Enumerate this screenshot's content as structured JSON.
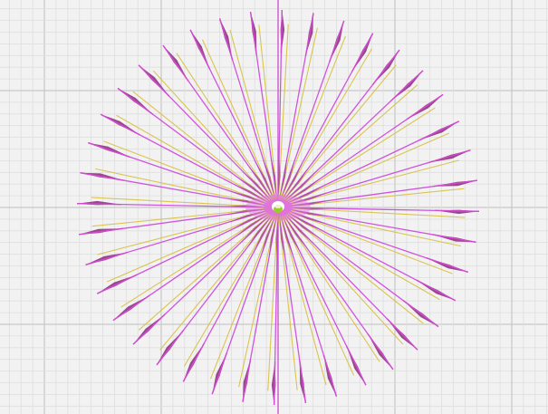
{
  "scene": {
    "background": "#f2f2f2",
    "grid_minor_color": "#dedede",
    "grid_major_color": "#c8c8c8",
    "axis_color": "#cc44cc",
    "ray_magenta": "#cc44dd",
    "ray_yellow": "#d8c040",
    "blade_color": "#8a2a7a",
    "blade_highlight": "#d24ad2",
    "center_ring_outer": "#e070e0",
    "center_ring_inner": "#ffffff",
    "center_cylinder": "#9ccc2c",
    "ray_count": 40
  }
}
